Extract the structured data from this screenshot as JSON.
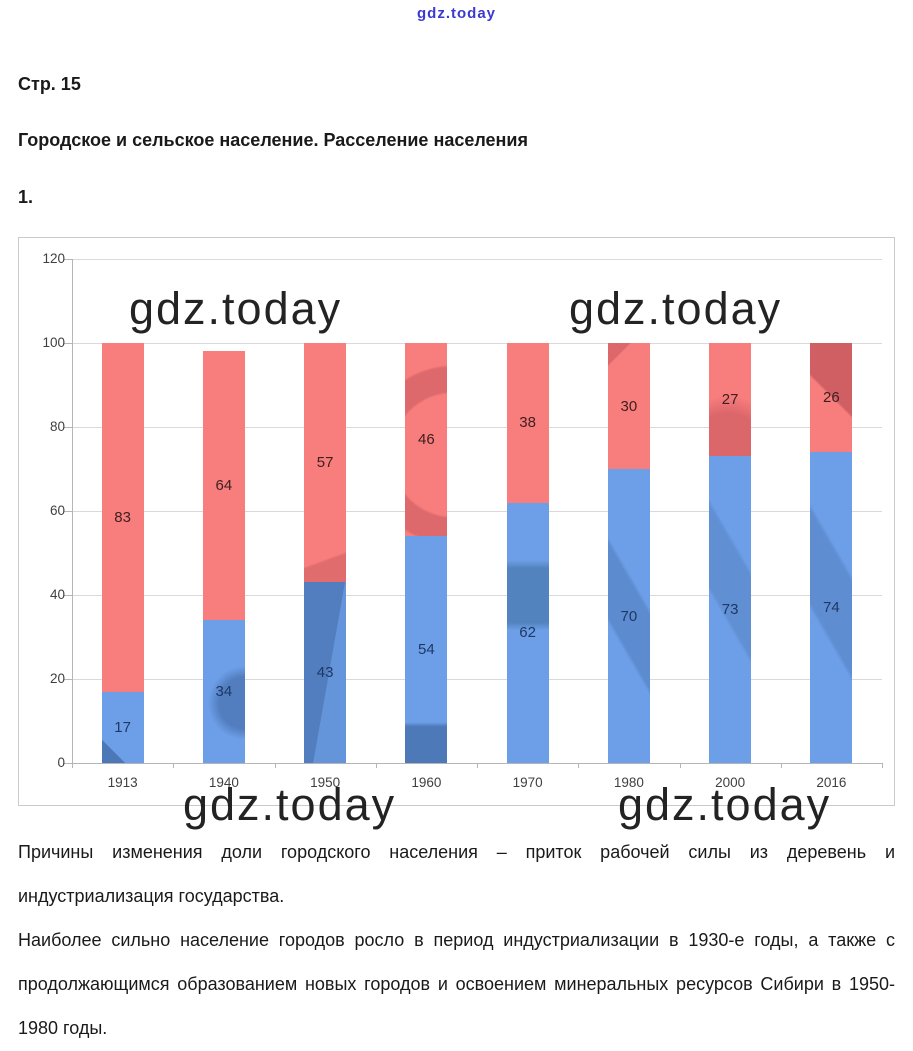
{
  "site_logo": "gdz.today",
  "watermark_text": "gdz.today",
  "page_label": "Стр. 15",
  "heading": "Городское и сельское население. Расселение населения",
  "item_number": "1.",
  "chart_data": {
    "type": "stacked-bar",
    "categories": [
      "1913",
      "1940",
      "1950",
      "1960",
      "1970",
      "1980",
      "2000",
      "2016"
    ],
    "series": [
      {
        "name": "urban-share-blue-bottom",
        "color": "#6d9fe8",
        "label_color": "#1f3864",
        "values": [
          17,
          34,
          43,
          54,
          62,
          70,
          73,
          74
        ]
      },
      {
        "name": "rural-share-red-top",
        "color": "#f87d7d",
        "label_color": "#3f2021",
        "values": [
          83,
          64,
          57,
          46,
          38,
          30,
          27,
          26
        ]
      }
    ],
    "title": "",
    "xlabel": "",
    "ylabel": "",
    "ylim": [
      0,
      120
    ],
    "ytick_step": 20,
    "yticks": [
      0,
      20,
      40,
      60,
      80,
      100,
      120
    ],
    "grid": true,
    "legend": "none",
    "grid_color": "#d9d9d9",
    "axis_color": "#b5b5b5",
    "tick_label_color": "#3f3f3f"
  },
  "paragraphs": [
    "Причины изменения доли городского населения – приток рабочей силы из деревень и индустриализация государства.",
    "Наиболее сильно население городов росло в период индустриализации в 1930-е годы, а также с продолжающимся образованием новых городов и освоением минеральных ресурсов Сибири в 1950-1980 годы."
  ],
  "colors": {
    "logo": "#3a3ad2",
    "body_text": "#1a1a1a",
    "watermark": "#121212"
  }
}
